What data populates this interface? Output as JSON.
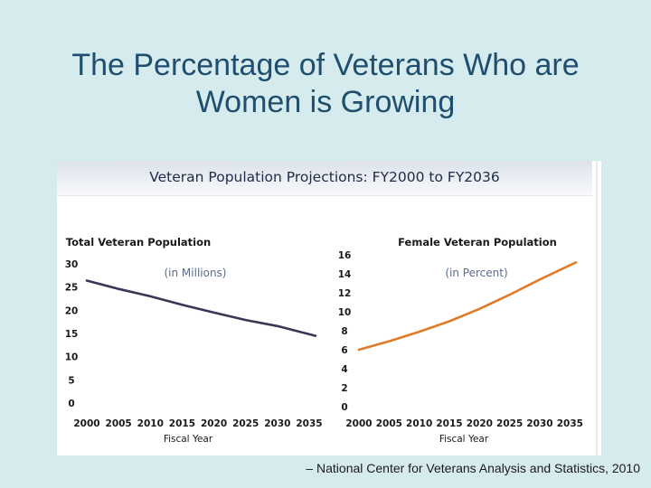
{
  "slide": {
    "title_line1": "The Percentage of Veterans Who are",
    "title_line2": "Women is Growing",
    "banner": "Veteran Population Projections: FY2000 to FY2036",
    "source": "– National Center for Veterans Analysis and Statistics, 2010"
  },
  "chart_data": [
    {
      "type": "line",
      "title": "Total Veteran Population",
      "subtitle": "(in Millions)",
      "xlabel": "Fiscal Year",
      "ylabel": "",
      "xlim": [
        2000,
        2036
      ],
      "ylim": [
        0,
        30
      ],
      "xticks": [
        2000,
        2005,
        2010,
        2015,
        2020,
        2025,
        2030,
        2035
      ],
      "yticks": [
        0,
        5,
        10,
        15,
        20,
        25,
        30
      ],
      "color": "#3a3656",
      "x": [
        2000,
        2005,
        2010,
        2015,
        2020,
        2025,
        2030,
        2036
      ],
      "y": [
        26.4,
        24.6,
        23.0,
        21.2,
        19.5,
        17.9,
        16.6,
        14.5
      ],
      "grid": false
    },
    {
      "type": "line",
      "title": "Female Veteran Population",
      "subtitle": "(in Percent)",
      "xlabel": "Fiscal Year",
      "ylabel": "",
      "xlim": [
        2000,
        2036
      ],
      "ylim": [
        0,
        16
      ],
      "xticks": [
        2000,
        2005,
        2010,
        2015,
        2020,
        2025,
        2030,
        2035
      ],
      "yticks": [
        0,
        2,
        4,
        6,
        8,
        10,
        12,
        14,
        16
      ],
      "color": "#e07b27",
      "x": [
        2000,
        2005,
        2010,
        2015,
        2020,
        2025,
        2030,
        2036
      ],
      "y": [
        6.0,
        6.9,
        7.9,
        9.0,
        10.3,
        11.8,
        13.4,
        15.2
      ],
      "grid": false
    }
  ]
}
